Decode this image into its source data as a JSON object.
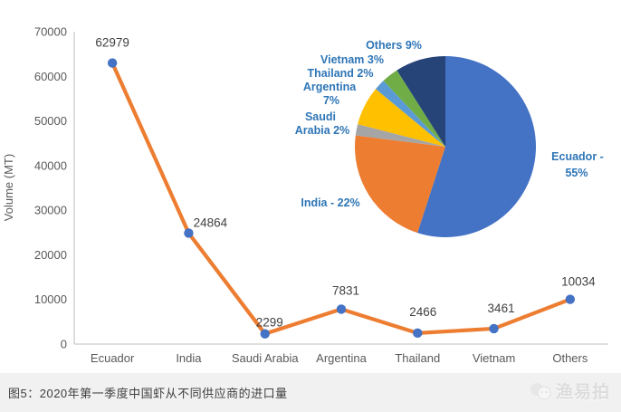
{
  "page": {
    "caption": "图5：2020年第一季度中国虾从不同供应商的进口量",
    "watermark_text": "渔易拍"
  },
  "colors": {
    "line": "#ED7D31",
    "marker": "#4472C4",
    "axis": "#C9C9C9",
    "tick_text": "#595959",
    "data_label_text": "#404040",
    "pie_label_text": "#2E75B6",
    "caption_bar_bg": "#F1F1F1",
    "caption_text": "#3F3F3F",
    "watermark": "#DCDCDC"
  },
  "chart_data": [
    {
      "type": "line",
      "title": "",
      "categories": [
        "Ecuador",
        "India",
        "Saudi Arabia",
        "Argentina",
        "Thailand",
        "Vietnam",
        "Others"
      ],
      "values": [
        62979,
        24864,
        2299,
        7831,
        2466,
        3461,
        10034
      ],
      "data_labels": [
        "62979",
        "24864",
        "2299",
        "7831",
        "2466",
        "3461",
        "10034"
      ],
      "xlabel": "",
      "ylabel": "Volume (MT)",
      "ylim": [
        0,
        70000
      ],
      "yticks": [
        0,
        10000,
        20000,
        30000,
        40000,
        50000,
        60000,
        70000
      ],
      "grid": false,
      "legend_position": "none",
      "marker": "circle"
    },
    {
      "type": "pie",
      "title": "",
      "start_angle_deg": 0,
      "direction": "clockwise",
      "legend_position": "none",
      "slices": [
        {
          "name": "Ecuador",
          "percent": 55,
          "color": "#4472C4",
          "label_lines": [
            "Ecuador -",
            "55%"
          ]
        },
        {
          "name": "India",
          "percent": 22,
          "color": "#ED7D31",
          "label_lines": [
            "India - 22%"
          ]
        },
        {
          "name": "Saudi Arabia",
          "percent": 2,
          "color": "#A5A5A5",
          "label_lines": [
            "Saudi",
            "Arabia 2%"
          ]
        },
        {
          "name": "Argentina",
          "percent": 7,
          "color": "#FFC000",
          "label_lines": [
            "Argentina",
            "7%"
          ]
        },
        {
          "name": "Thailand",
          "percent": 2,
          "color": "#5B9BD5",
          "label_lines": [
            "Thailand 2%"
          ]
        },
        {
          "name": "Vietnam",
          "percent": 3,
          "color": "#70AD47",
          "label_lines": [
            "Vietnam 3%"
          ]
        },
        {
          "name": "Others",
          "percent": 9,
          "color": "#264478",
          "label_lines": [
            "Others 9%"
          ]
        }
      ]
    }
  ]
}
